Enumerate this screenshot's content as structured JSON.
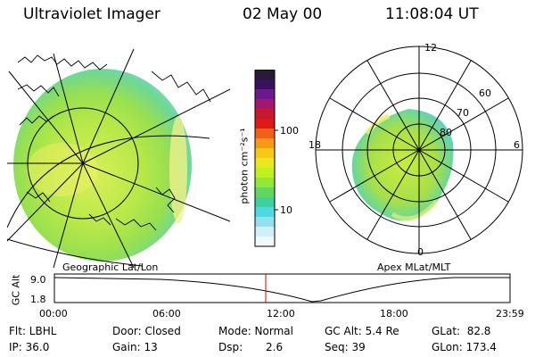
{
  "header": {
    "instrument": "Ultraviolet Imager",
    "date": "02 May 00",
    "time": "11:08:04 UT"
  },
  "left_panel": {
    "label": "Geographic Lat/Lon"
  },
  "right_panel": {
    "label": "Apex MLat/MLT",
    "mlt_labels": [
      "12",
      "18",
      "6",
      "0"
    ],
    "lat_labels": [
      "60",
      "70",
      "80"
    ]
  },
  "colorbar": {
    "unit_label": "photon cm⁻²s⁻¹",
    "tick_100": "100",
    "tick_10": "10",
    "colors": [
      "#2a1a3a",
      "#3a1060",
      "#6a1a8a",
      "#a01870",
      "#c81830",
      "#e01818",
      "#f06018",
      "#f89818",
      "#f8c818",
      "#e8e820",
      "#c0f020",
      "#90e838",
      "#60d860",
      "#40d0a0",
      "#50d8e0",
      "#90e0f0",
      "#d0f0f8",
      "#f0f8fc"
    ]
  },
  "timeline": {
    "axis_label": "GC Alt",
    "y_top": "9.0",
    "y_bottom": "1.8",
    "ticks": [
      "00:00",
      "06:00",
      "12:00",
      "18:00",
      "23:59"
    ],
    "marker_hour": 11.13
  },
  "info": {
    "flt": "Flt: LBHL",
    "ip": "IP: 36.0",
    "door": "Door: Closed",
    "gain": "Gain: 13",
    "mode": "Mode: Normal",
    "dsp_label": "Dsp:",
    "dsp_value": "2.6",
    "gcalt": "GC Alt: 5.4 Re",
    "seq": "Seq: 39",
    "glat": "GLat:  82.8",
    "glon": "GLon: 173.4"
  }
}
